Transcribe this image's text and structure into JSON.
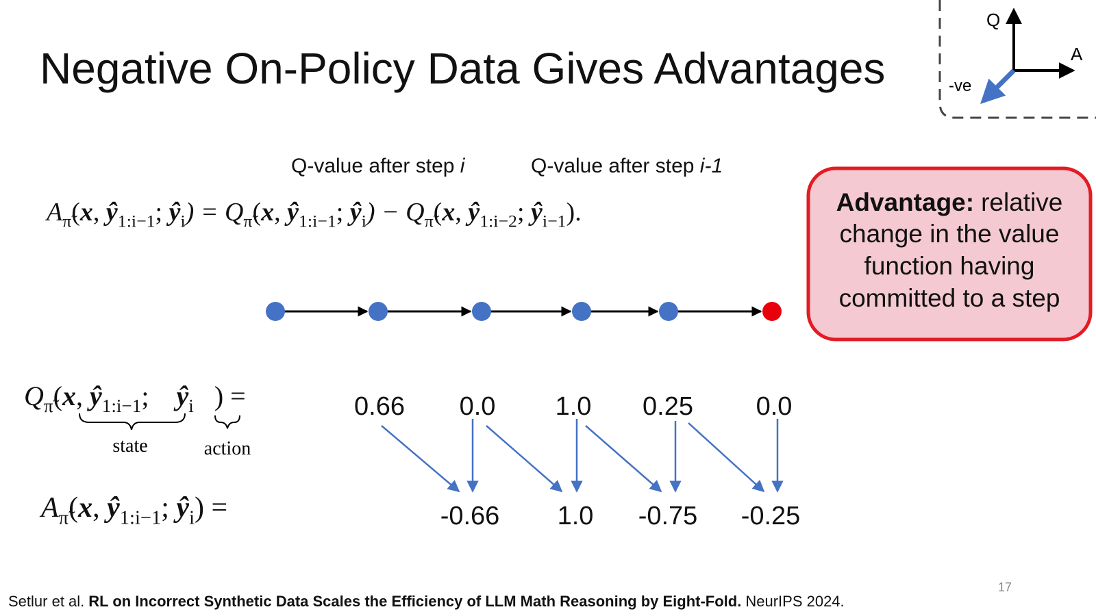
{
  "title": "Negative On-Policy Data Gives Advantages",
  "axis_icon": {
    "q": "Q",
    "a": "A",
    "neg": "-ve"
  },
  "annotations": [
    {
      "text": "Q-value after step ",
      "italic": "i"
    },
    {
      "text": "Q-value after step ",
      "italic": "i-1"
    }
  ],
  "equation": [
    [
      "A",
      "i"
    ],
    [
      "π̃",
      "s"
    ],
    [
      "(",
      "n"
    ],
    [
      "x",
      "b"
    ],
    [
      ", ",
      "n"
    ],
    [
      "ŷ",
      "b"
    ],
    [
      "1:i−1",
      "s"
    ],
    [
      "; ",
      "n"
    ],
    [
      "ŷ",
      "b"
    ],
    [
      "i",
      "s"
    ],
    [
      ") = Q",
      "i"
    ],
    [
      "π̃",
      "s"
    ],
    [
      "(",
      "n"
    ],
    [
      "x",
      "b"
    ],
    [
      ", ",
      "n"
    ],
    [
      "ŷ",
      "b"
    ],
    [
      "1:i−1",
      "s"
    ],
    [
      "; ",
      "n"
    ],
    [
      "ŷ",
      "b"
    ],
    [
      "i",
      "s"
    ],
    [
      ") − Q",
      "i"
    ],
    [
      "π̃",
      "s"
    ],
    [
      "(",
      "n"
    ],
    [
      "x",
      "b"
    ],
    [
      ", ",
      "n"
    ],
    [
      "ŷ",
      "b"
    ],
    [
      "1:i−2",
      "s"
    ],
    [
      "; ",
      "n"
    ],
    [
      "ŷ",
      "b"
    ],
    [
      "i−1",
      "s"
    ],
    [
      ").",
      "n"
    ]
  ],
  "advantage_box": {
    "term": "Advantage:",
    "lines": [
      "relative",
      "change in the value",
      "function having",
      "committed to a step"
    ]
  },
  "q_row": {
    "formula": [
      [
        "Q",
        "i"
      ],
      [
        "π̃",
        "s"
      ],
      [
        "(",
        "n"
      ],
      [
        "x",
        "b"
      ],
      [
        ", ",
        "n"
      ],
      [
        "ŷ",
        "b"
      ],
      [
        "1:i−1",
        "s"
      ],
      [
        ";    ",
        "n"
      ],
      [
        "ŷ",
        "b"
      ],
      [
        "i",
        "s"
      ],
      [
        "   ) =",
        "n"
      ]
    ],
    "state": "state",
    "action": "action",
    "values": [
      "0.66",
      "0.0",
      "1.0",
      "0.25",
      "0.0"
    ]
  },
  "a_row": {
    "formula": [
      [
        "A",
        "i"
      ],
      [
        "π̃",
        "s"
      ],
      [
        "(",
        "n"
      ],
      [
        "x",
        "b"
      ],
      [
        ", ",
        "n"
      ],
      [
        "ŷ",
        "b"
      ],
      [
        "1:i−1",
        "s"
      ],
      [
        "; ",
        "n"
      ],
      [
        "ŷ",
        "b"
      ],
      [
        "i",
        "s"
      ],
      [
        ") =",
        "n"
      ]
    ],
    "values": [
      "-0.66",
      "1.0",
      "-0.75",
      "-0.25"
    ]
  },
  "citation": {
    "authors": "Setlur et al.",
    "paper": "RL on Incorrect Synthetic Data Scales the Efficiency of LLM Math Reasoning by Eight-Fold.",
    "venue": "NeurIPS 2024."
  },
  "page_number": "17"
}
